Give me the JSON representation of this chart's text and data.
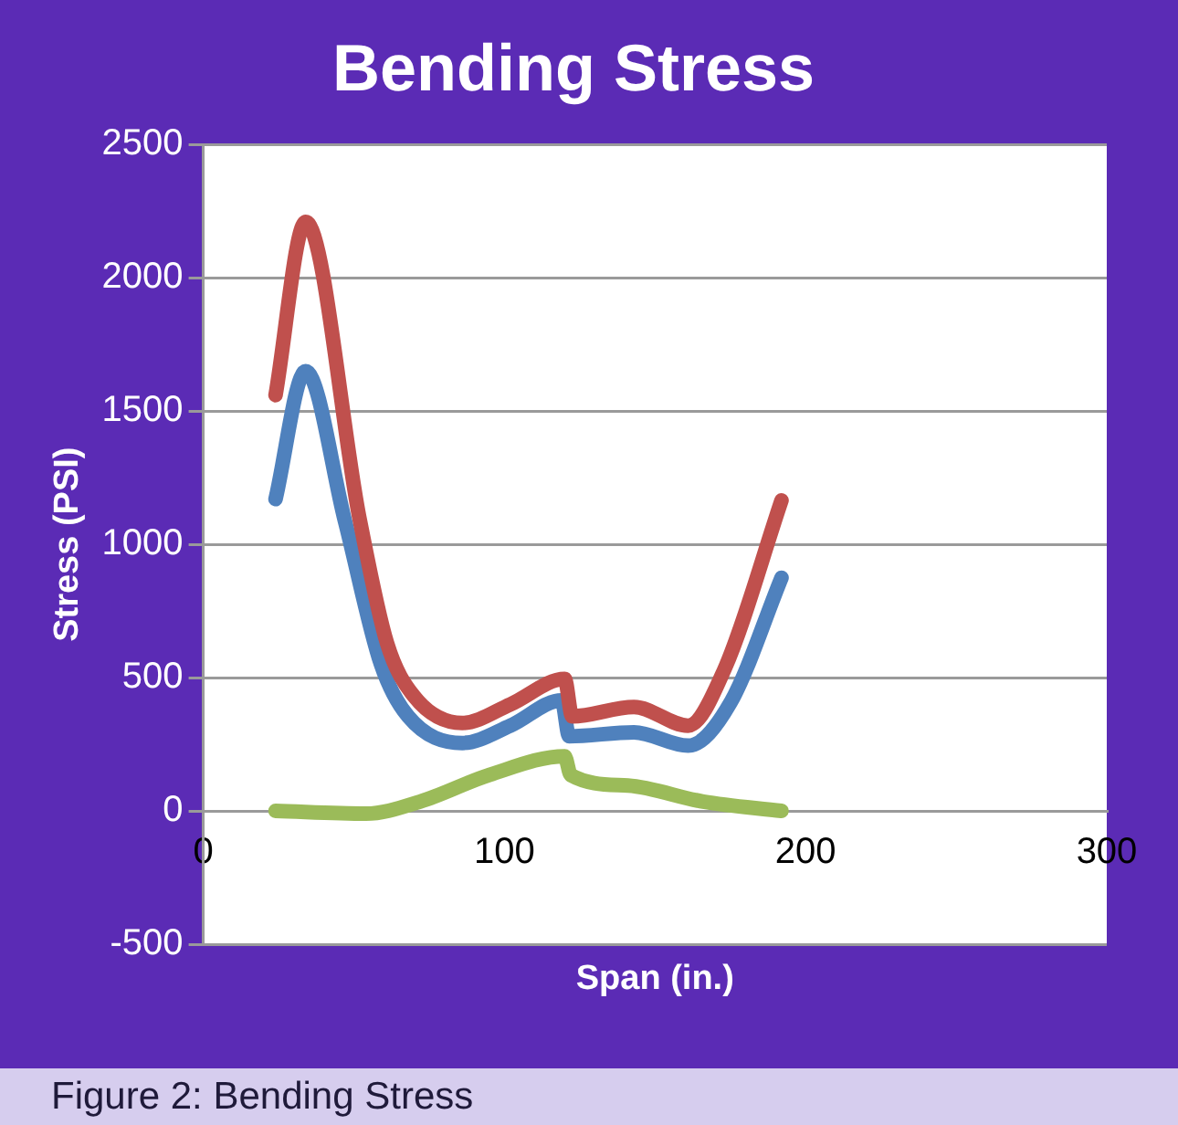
{
  "chart_data": {
    "type": "line",
    "title": "Bending Stress",
    "xlabel": "Span (in.)",
    "ylabel": "Stress (PSI)",
    "series": [
      {
        "color": "#c0504d",
        "x": [
          24,
          34,
          52,
          61,
          70,
          86,
          102,
          120,
          122.5,
          143,
          161,
          173,
          192
        ],
        "values": [
          1560,
          2210,
          1090,
          630,
          430,
          330,
          400,
          495,
          355,
          390,
          320,
          530,
          1165
        ]
      },
      {
        "color": "#4f81bd",
        "x": [
          24,
          34,
          47,
          59,
          68,
          86,
          102,
          119,
          121.5,
          143,
          161,
          175,
          192
        ],
        "values": [
          1170,
          1650,
          1090,
          550,
          355,
          255,
          320,
          415,
          280,
          295,
          245,
          405,
          875
        ]
      },
      {
        "color": "#9bbb59",
        "x": [
          24,
          54,
          72,
          95,
          120,
          122,
          141,
          166,
          192
        ],
        "values": [
          0,
          -10,
          35,
          135,
          205,
          135,
          95,
          35,
          0
        ]
      }
    ],
    "xlim": [
      0,
      300
    ],
    "xticks": [
      0,
      100,
      200,
      300
    ],
    "ylim": [
      -500,
      2500
    ],
    "yticks": [
      -500,
      0,
      500,
      1000,
      1500,
      2000,
      2500
    ],
    "grid": "y",
    "legend": false,
    "marker": "none",
    "line_style": "solid",
    "annotations": [
      "Figure 2:  Bending Stress"
    ]
  }
}
